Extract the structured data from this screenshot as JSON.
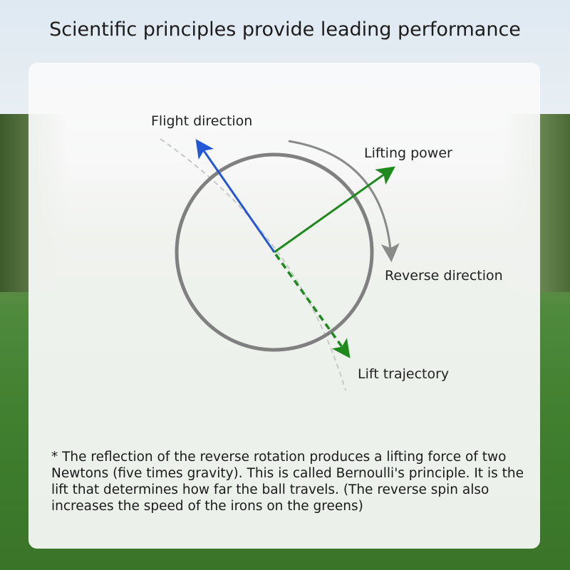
{
  "title": "Scientific principles provide leading performance",
  "diagram": {
    "labels": {
      "flight_direction": "Flight direction",
      "lifting_power": "Lifting power",
      "reverse_direction": "Reverse direction",
      "lift_trajectory": "Lift trajectory"
    },
    "colors": {
      "flight_arrow": "#2457d6",
      "lift_arrow": "#1e8a1e",
      "ball_outline": "#808080",
      "rotation_arrow": "#8a8a8a",
      "trajectory_curve": "#c8c8c8"
    }
  },
  "note": "* The reflection of the reverse rotation produces a lifting force of two Newtons (five times gravity). This is called Bernoulli's principle. It is the lift that determines how far the ball travels. (The reverse spin also increases the speed of the irons on the greens)"
}
